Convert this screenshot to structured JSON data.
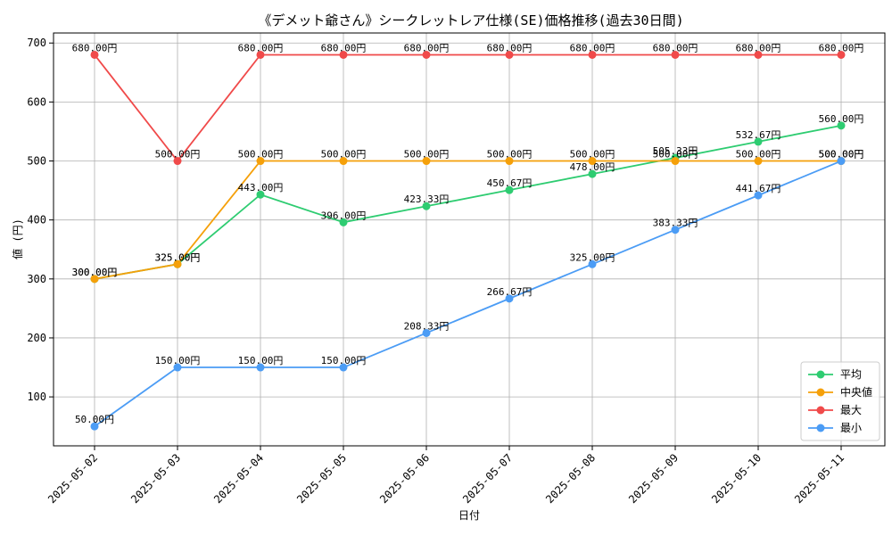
{
  "chart_data": {
    "type": "line",
    "title": "《デメット爺さん》シークレットレア仕様(SE)価格推移(過去30日間)",
    "xlabel": "日付",
    "ylabel": "値 (円)",
    "categories": [
      "2025-05-02",
      "2025-05-03",
      "2025-05-04",
      "2025-05-05",
      "2025-05-06",
      "2025-05-07",
      "2025-05-08",
      "2025-05-09",
      "2025-05-10",
      "2025-05-11"
    ],
    "ylim": [
      17,
      717
    ],
    "yticks": [
      100,
      200,
      300,
      400,
      500,
      600,
      700
    ],
    "grid": true,
    "legend_position": "bottom-right",
    "value_suffix": "円",
    "series": [
      {
        "name": "平均",
        "color": "#2ecc71",
        "values": [
          300,
          325,
          443,
          396,
          423.33,
          450.67,
          478,
          505.33,
          532.67,
          560
        ]
      },
      {
        "name": "中央値",
        "color": "#f5a00a",
        "values": [
          300,
          325,
          500,
          500,
          500,
          500,
          500,
          500,
          500,
          500
        ]
      },
      {
        "name": "最大",
        "color": "#f04a4a",
        "values": [
          680,
          500,
          680,
          680,
          680,
          680,
          680,
          680,
          680,
          680
        ]
      },
      {
        "name": "最小",
        "color": "#4b9cf5",
        "values": [
          50,
          150,
          150,
          150,
          208.33,
          266.67,
          325,
          383.33,
          441.67,
          500
        ]
      }
    ]
  }
}
